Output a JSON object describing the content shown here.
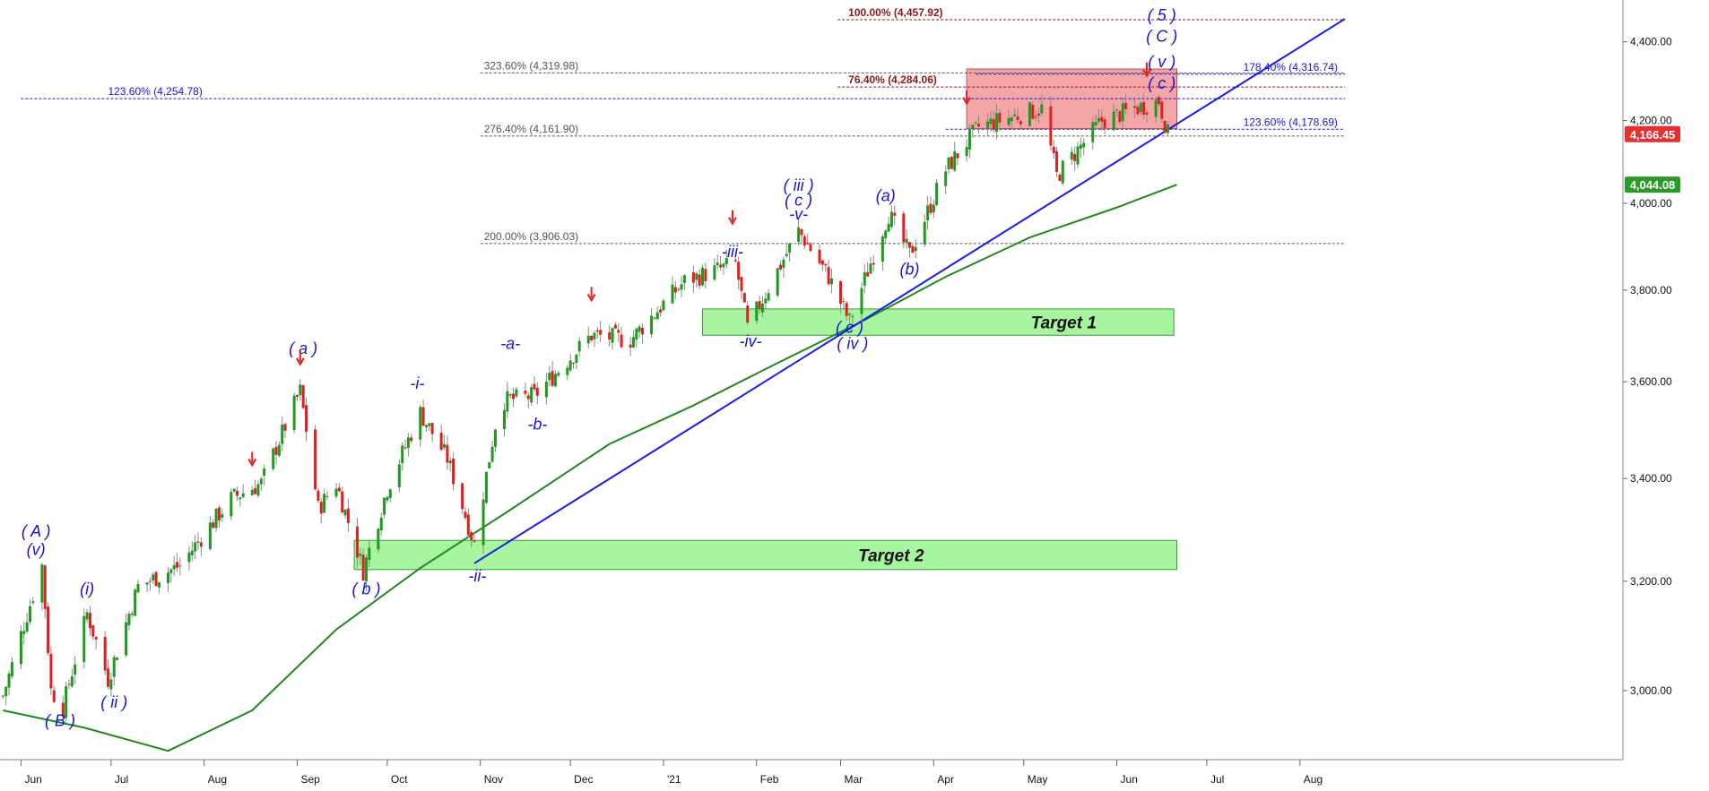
{
  "chart_data": {
    "type": "candlestick",
    "ylim": [
      2880,
      4510
    ],
    "xlim": [
      "2020-05-25",
      "2021-08-16"
    ],
    "y_scale": "log",
    "grid": false,
    "y_ticks": [
      3000,
      3200,
      3400,
      3600,
      3800,
      4000,
      4200,
      4400
    ],
    "y_tick_labels": [
      "3,000.00",
      "3,200.00",
      "3,400.00",
      "3,600.00",
      "3,800.00",
      "4,000.00",
      "4,200.00",
      "4,400.00"
    ],
    "x_ticks": [
      {
        "label": "Jun",
        "date": "2020-06-01"
      },
      {
        "label": "Jul",
        "date": "2020-07-01"
      },
      {
        "label": "Aug",
        "date": "2020-08-01"
      },
      {
        "label": "Sep",
        "date": "2020-09-01"
      },
      {
        "label": "Oct",
        "date": "2020-10-01"
      },
      {
        "label": "Nov",
        "date": "2020-11-01"
      },
      {
        "label": "Dec",
        "date": "2020-12-01"
      },
      {
        "label": "'21",
        "date": "2021-01-01"
      },
      {
        "label": "Feb",
        "date": "2021-02-01"
      },
      {
        "label": "Mar",
        "date": "2021-03-01"
      },
      {
        "label": "Apr",
        "date": "2021-04-01"
      },
      {
        "label": "May",
        "date": "2021-05-01"
      },
      {
        "label": "Jun",
        "date": "2021-06-01"
      },
      {
        "label": "Jul",
        "date": "2021-07-01"
      },
      {
        "label": "Aug",
        "date": "2021-08-01"
      }
    ],
    "price_path": [
      {
        "date": "2020-05-26",
        "close": 2990
      },
      {
        "date": "2020-06-08",
        "close": 3230
      },
      {
        "date": "2020-06-11",
        "close": 3000
      },
      {
        "date": "2020-06-15",
        "close": 2970
      },
      {
        "date": "2020-06-23",
        "close": 3140
      },
      {
        "date": "2020-06-30",
        "close": 3020
      },
      {
        "date": "2020-07-10",
        "close": 3190
      },
      {
        "date": "2020-07-24",
        "close": 3230
      },
      {
        "date": "2020-08-10",
        "close": 3360
      },
      {
        "date": "2020-08-20",
        "close": 3390
      },
      {
        "date": "2020-09-02",
        "close": 3580
      },
      {
        "date": "2020-09-08",
        "close": 3340
      },
      {
        "date": "2020-09-14",
        "close": 3390
      },
      {
        "date": "2020-09-23",
        "close": 3220
      },
      {
        "date": "2020-10-01",
        "close": 3380
      },
      {
        "date": "2020-10-12",
        "close": 3535
      },
      {
        "date": "2020-10-21",
        "close": 3440
      },
      {
        "date": "2020-10-30",
        "close": 3270
      },
      {
        "date": "2020-11-06",
        "close": 3510
      },
      {
        "date": "2020-11-09",
        "close": 3560
      },
      {
        "date": "2020-11-19",
        "close": 3570
      },
      {
        "date": "2020-12-08",
        "close": 3700
      },
      {
        "date": "2020-12-21",
        "close": 3690
      },
      {
        "date": "2021-01-08",
        "close": 3820
      },
      {
        "date": "2021-01-25",
        "close": 3860
      },
      {
        "date": "2021-01-29",
        "close": 3715
      },
      {
        "date": "2021-02-15",
        "close": 3935
      },
      {
        "date": "2021-02-25",
        "close": 3830
      },
      {
        "date": "2021-03-04",
        "close": 3730
      },
      {
        "date": "2021-03-17",
        "close": 3975
      },
      {
        "date": "2021-03-24",
        "close": 3880
      },
      {
        "date": "2021-04-05",
        "close": 4080
      },
      {
        "date": "2021-04-16",
        "close": 4185
      },
      {
        "date": "2021-05-07",
        "close": 4230
      },
      {
        "date": "2021-05-12",
        "close": 4065
      },
      {
        "date": "2021-05-27",
        "close": 4200
      },
      {
        "date": "2021-06-15",
        "close": 4250
      },
      {
        "date": "2021-06-18",
        "close": 4166.45
      }
    ],
    "moving_average": [
      {
        "date": "2020-05-26",
        "close": 2965
      },
      {
        "date": "2020-06-22",
        "close": 2935
      },
      {
        "date": "2020-07-20",
        "close": 2895
      },
      {
        "date": "2020-08-17",
        "close": 2965
      },
      {
        "date": "2020-09-14",
        "close": 3110
      },
      {
        "date": "2020-10-12",
        "close": 3225
      },
      {
        "date": "2020-11-09",
        "close": 3330
      },
      {
        "date": "2020-12-14",
        "close": 3470
      },
      {
        "date": "2021-01-11",
        "close": 3550
      },
      {
        "date": "2021-02-08",
        "close": 3640
      },
      {
        "date": "2021-03-08",
        "close": 3730
      },
      {
        "date": "2021-04-05",
        "close": 3830
      },
      {
        "date": "2021-05-03",
        "close": 3920
      },
      {
        "date": "2021-06-01",
        "close": 3990
      },
      {
        "date": "2021-06-21",
        "close": 4044.08
      }
    ],
    "trendline": {
      "start": {
        "date": "2020-10-30",
        "price": 3234
      },
      "end": {
        "date": "2021-08-16",
        "price": 4460
      }
    },
    "fib_levels": [
      {
        "label": "100.00% (4,457.92)",
        "price": 4457.92,
        "color": "#8b1a1a",
        "start": "2021-02-28",
        "end": "2021-08-16"
      },
      {
        "label": "323.60% (4,319.98)",
        "price": 4319.98,
        "color": "#555555",
        "start": "2020-11-01",
        "end": "2021-08-16"
      },
      {
        "label": "178.40% (4,316.74)",
        "price": 4316.74,
        "color": "#1515d6",
        "start": "2021-04-15",
        "end": "2021-08-16"
      },
      {
        "label": "76.40% (4,284.06)",
        "price": 4284.06,
        "color": "#8b1a1a",
        "start": "2021-02-28",
        "end": "2021-08-16"
      },
      {
        "label": "123.60% (4,254.78)",
        "price": 4254.78,
        "color": "#1515d6",
        "start": "2020-06-01",
        "end": "2021-08-16"
      },
      {
        "label": "123.60% (4,178.69)",
        "price": 4178.69,
        "color": "#1515d6",
        "start": "2021-04-05",
        "end": "2021-08-16"
      },
      {
        "label": "276.40% (4,161.90)",
        "price": 4161.9,
        "color": "#555555",
        "start": "2020-11-01",
        "end": "2021-08-16"
      },
      {
        "label": "200.00% (3,906.03)",
        "price": 3906.03,
        "color": "#555555",
        "start": "2020-11-01",
        "end": "2021-08-16"
      }
    ],
    "zones": [
      {
        "label": "",
        "kind": "resistance",
        "start": "2021-04-12",
        "end": "2021-06-21",
        "low": 4180,
        "high": 4330,
        "color": "#f4a6a6"
      },
      {
        "label": "Target 1",
        "kind": "target",
        "start": "2021-01-14",
        "end": "2021-06-20",
        "low": 3700,
        "high": 3758,
        "color": "#a8f5a0"
      },
      {
        "label": "Target 2",
        "kind": "target",
        "start": "2020-09-20",
        "end": "2021-06-21",
        "low": 3222,
        "high": 3278,
        "color": "#a8f5a0"
      }
    ],
    "wave_labels": [
      {
        "text": "( A )",
        "date": "2020-06-06",
        "price": 3285
      },
      {
        "text": "(v)",
        "date": "2020-06-06",
        "price": 3250
      },
      {
        "text": "( B )",
        "date": "2020-06-14",
        "price": 2938
      },
      {
        "text": "(i)",
        "date": "2020-06-23",
        "price": 3175
      },
      {
        "text": "( ii )",
        "date": "2020-07-02",
        "price": 2970
      },
      {
        "text": "( a )",
        "date": "2020-09-03",
        "price": 3660
      },
      {
        "text": "( b )",
        "date": "2020-09-24",
        "price": 3175
      },
      {
        "text": "-i-",
        "date": "2020-10-11",
        "price": 3585
      },
      {
        "text": "-ii-",
        "date": "2020-10-31",
        "price": 3200
      },
      {
        "text": "-a-",
        "date": "2020-11-11",
        "price": 3670
      },
      {
        "text": "-b-",
        "date": "2020-11-20",
        "price": 3500
      },
      {
        "text": "-iii-",
        "date": "2021-01-24",
        "price": 3875
      },
      {
        "text": "-iv-",
        "date": "2021-01-30",
        "price": 3675
      },
      {
        "text": "( iii )",
        "date": "2021-02-15",
        "price": 4030
      },
      {
        "text": "( c )",
        "date": "2021-02-15",
        "price": 3995
      },
      {
        "text": "-v-",
        "date": "2021-02-15",
        "price": 3962
      },
      {
        "text": "(a)",
        "date": "2021-03-16",
        "price": 4005
      },
      {
        "text": "(b)",
        "date": "2021-03-24",
        "price": 3835
      },
      {
        "text": "( c )",
        "date": "2021-03-04",
        "price": 3705
      },
      {
        "text": "( iv )",
        "date": "2021-03-05",
        "price": 3670
      },
      {
        "text": "( 5 )",
        "date": "2021-06-16",
        "price": 4455
      },
      {
        "text": "( C )",
        "date": "2021-06-16",
        "price": 4400
      },
      {
        "text": "( v )",
        "date": "2021-06-16",
        "price": 4335
      },
      {
        "text": "( c )",
        "date": "2021-06-16",
        "price": 4280
      }
    ],
    "arrows": [
      {
        "date": "2020-08-17",
        "price": 3425
      },
      {
        "date": "2020-09-02",
        "price": 3635
      },
      {
        "date": "2020-12-08",
        "price": 3775
      },
      {
        "date": "2021-01-24",
        "price": 3950
      },
      {
        "date": "2021-04-12",
        "price": 4240
      },
      {
        "date": "2021-06-11",
        "price": 4310
      }
    ],
    "price_badges": [
      {
        "label": "4,166.45",
        "price": 4166.45,
        "color": "#e53030"
      },
      {
        "label": "4,044.08",
        "price": 4044.08,
        "color": "#2a9a2a"
      }
    ]
  }
}
